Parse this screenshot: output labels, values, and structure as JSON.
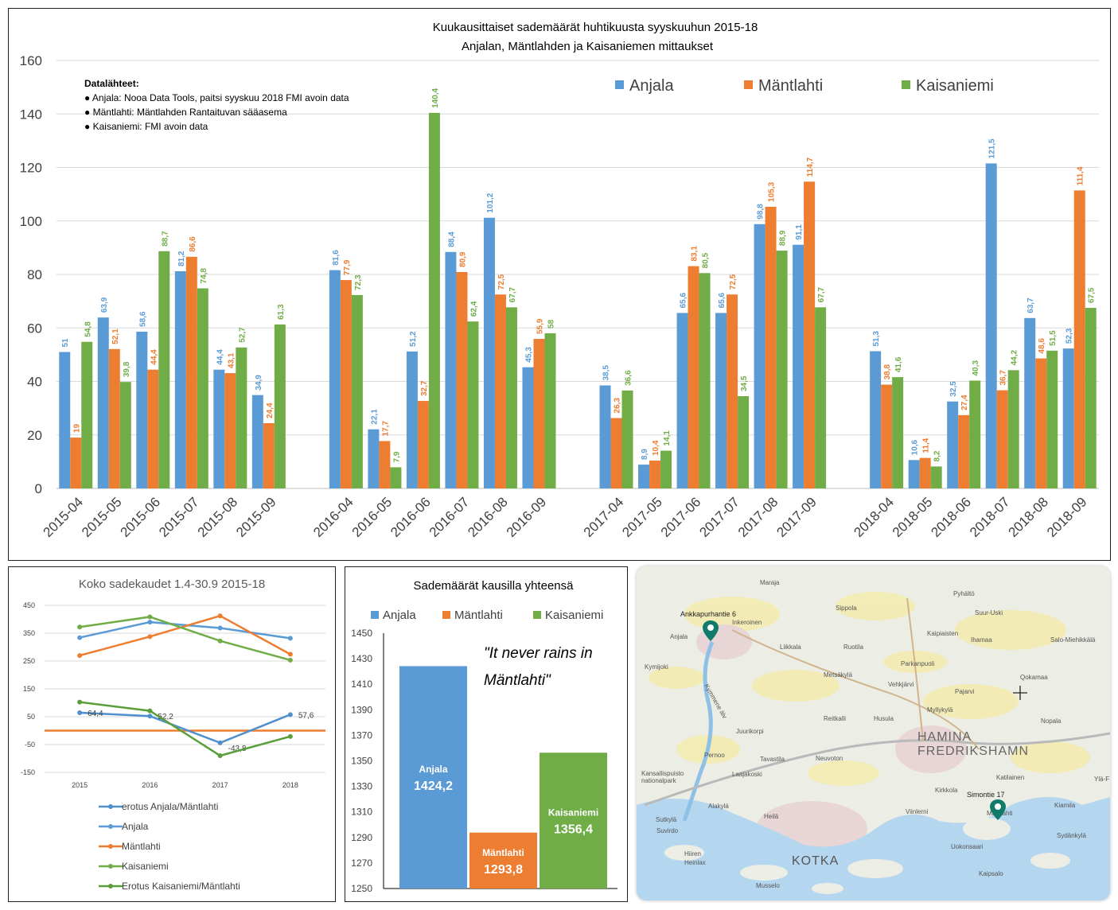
{
  "colors": {
    "anjala": "#5b9bd5",
    "mantlahti": "#ed7d31",
    "kaisaniemi": "#70ad47",
    "grid": "#d9d9d9"
  },
  "main": {
    "chart_data": {
      "type": "bar",
      "title": "Kuukausittaiset sademäärät huhtikuusta syyskuuhun 2015-18",
      "subtitle": "Anjalan, Mäntlahden ja Kaisaniemen mittaukset",
      "ylim": [
        0,
        160
      ],
      "yticks": [
        0,
        20,
        40,
        60,
        80,
        100,
        120,
        140,
        160
      ],
      "grid": true,
      "legend_position": "top-right",
      "categories": [
        "2015-04",
        "2015-05",
        "2015-06",
        "2015-07",
        "2015-08",
        "2015-09",
        "2016-04",
        "2016-05",
        "2016-06",
        "2016-07",
        "2016-08",
        "2016-09",
        "2017-04",
        "2017-05",
        "2017-06",
        "2017-07",
        "2017-08",
        "2017-09",
        "2018-04",
        "2018-05",
        "2018-06",
        "2018-07",
        "2018-08",
        "2018-09"
      ],
      "series": [
        {
          "name": "Anjala",
          "values": [
            51,
            63.9,
            58.6,
            81.2,
            44.4,
            34.9,
            81.6,
            22.1,
            51.2,
            88.4,
            101.2,
            45.3,
            38.5,
            8.9,
            65.6,
            65.6,
            98.8,
            91.1,
            51.3,
            10.6,
            32.5,
            121.5,
            63.7,
            52.3
          ],
          "labels": [
            "51",
            "63,9",
            "58,6",
            "81,2",
            "44,4",
            "34,9",
            "81,6",
            "22,1",
            "51,2",
            "88,4",
            "101,2",
            "45,3",
            "38,5",
            "8,9",
            "65,6",
            "65,6",
            "98,8",
            "91,1",
            "51,3",
            "10,6",
            "32,5",
            "121,5",
            "63,7",
            "52,3"
          ]
        },
        {
          "name": "Mäntlahti",
          "values": [
            19,
            52.1,
            44.4,
            86.6,
            43.1,
            24.4,
            77.9,
            17.7,
            32.7,
            80.9,
            72.5,
            55.9,
            26.3,
            10.4,
            83.1,
            72.5,
            105.3,
            114.7,
            38.8,
            11.4,
            27.4,
            36.7,
            48.6,
            111.4
          ],
          "labels": [
            "19",
            "52,1",
            "44,4",
            "86,6",
            "43,1",
            "24,4",
            "77,9",
            "17,7",
            "32,7",
            "80,9",
            "72,5",
            "55,9",
            "26,3",
            "10,4",
            "83,1",
            "72,5",
            "105,3",
            "114,7",
            "38,8",
            "11,4",
            "27,4",
            "36,7",
            "48,6",
            "111,4"
          ]
        },
        {
          "name": "Kaisaniemi",
          "values": [
            54.8,
            39.8,
            88.7,
            74.8,
            52.7,
            61.3,
            72.3,
            7.9,
            140.4,
            62.4,
            67.7,
            58,
            36.6,
            14.1,
            80.5,
            34.5,
            88.9,
            67.7,
            41.6,
            8.2,
            40.3,
            44.2,
            51.5,
            67.5
          ],
          "labels": [
            "54,8",
            "39,8",
            "88,7",
            "74,8",
            "52,7",
            "61,3",
            "72,3",
            "7,9",
            "140,4",
            "62,4",
            "67,7",
            "58",
            "36,6",
            "14,1",
            "80,5",
            "34,5",
            "88,9",
            "67,7",
            "41,6",
            "8,2",
            "40,3",
            "44,2",
            "51,5",
            "67,5"
          ]
        }
      ],
      "annotation": {
        "heading": "Datalähteet:",
        "items": [
          "Anjala: Nooa Data Tools, paitsi syyskuu 2018 FMI avoin data",
          "Mäntlahti: Mäntlahden Rantaituvan sääasema",
          "Kaisaniemi: FMI avoin data"
        ]
      }
    }
  },
  "season": {
    "chart_data": {
      "type": "line",
      "title": "Koko sadekaudet 1.4-30.9 2015-18",
      "x": [
        "2015",
        "2016",
        "2017",
        "2018"
      ],
      "ylim": [
        -150,
        450
      ],
      "yticks": [
        -150,
        -50,
        50,
        150,
        250,
        350,
        450
      ],
      "grid": true,
      "legend_position": "bottom",
      "series": [
        {
          "name": "erotus Anjala/Mäntlahti",
          "values": [
            64.4,
            52.2,
            -43.8,
            57.6
          ],
          "labels": [
            "64,4",
            "52,2",
            "-43,8",
            "57,6"
          ]
        },
        {
          "name": "Anjala",
          "values": [
            334.1,
            389.8,
            368.5,
            331.9
          ]
        },
        {
          "name": "Mäntlahti",
          "values": [
            269.7,
            337.6,
            412.3,
            274.3
          ]
        },
        {
          "name": "Kaisaniemi",
          "values": [
            372.1,
            408.7,
            322.3,
            253.3
          ]
        },
        {
          "name": "Erotus Kaisaniemi/Mäntlahti",
          "values": [
            102.4,
            71.1,
            -90,
            -21
          ]
        }
      ],
      "reference_line": 0
    }
  },
  "totals": {
    "chart_data": {
      "type": "bar",
      "title": "Sademäärät kausilla yhteensä",
      "categories": [
        "Anjala",
        "Mäntlahti",
        "Kaisaniemi"
      ],
      "values": [
        1424.2,
        1293.8,
        1356.4
      ],
      "labels": [
        "1424,2",
        "1293,8",
        "1356,4"
      ],
      "ylim": [
        1250,
        1450
      ],
      "yticks": [
        1250,
        1270,
        1290,
        1310,
        1330,
        1350,
        1370,
        1390,
        1410,
        1430,
        1450
      ],
      "legend_position": "top",
      "annotation_lines": [
        "\"It never rains in",
        "Mäntlahti\""
      ]
    }
  },
  "map": {
    "places": [
      "Maraja",
      "Pyhältö",
      "Ankkapurhantie 6",
      "Inkeroinen",
      "Sippola",
      "Suur-Uski",
      "Kaipiaisten",
      "Anjala",
      "Liikkala",
      "Ruotila",
      "Ihamaa",
      "Salo-Miehikkälä",
      "Metsäkylä",
      "Parkanpuoli",
      "Kymijoki",
      "Vehkjärvi",
      "Pajarvi",
      "Qokamaa",
      "Myllykylä",
      "Kymmene älv",
      "Juurikorpi",
      "Reitkalli",
      "Husula",
      "HAMINA",
      "FREDRIKSHAMN",
      "Nopala",
      "Pernoo",
      "Tavastila",
      "Neuvoton",
      "Laajakoski",
      "Kansallispuisto",
      "nationalpark",
      "Katilainen",
      "Ylä-F",
      "Alakylä",
      "Simontie 17",
      "Mäntlahti",
      "Kirkkola",
      "Sutkylä",
      "Heilä",
      "Viinlerni",
      "Kiamila",
      "Sydänkylä",
      "Suvirdo",
      "Hiiren",
      "Heinlax",
      "KOTKA",
      "Uokonsaari",
      "Musselo",
      "Kaipsalo"
    ]
  }
}
